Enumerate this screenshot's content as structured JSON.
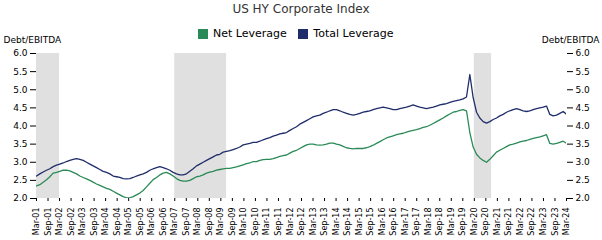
{
  "chart_data": {
    "type": "line",
    "title": "US HY Corporate Index",
    "ylabel": "Debt/EBITDA",
    "y2label": "Debt/EBITDA",
    "x": [
      0,
      1,
      2,
      3,
      4,
      5,
      6,
      7,
      8,
      9,
      10,
      11,
      12,
      13,
      14,
      15,
      16,
      17,
      18,
      19,
      20,
      21,
      22,
      23,
      24,
      25,
      26,
      27,
      28,
      29,
      30,
      31,
      32,
      33,
      34,
      35,
      36,
      37,
      38,
      39,
      40,
      41,
      42,
      43,
      44,
      45,
      46,
      47,
      48,
      49,
      50,
      51,
      52,
      53,
      54,
      55,
      56,
      57,
      58,
      59,
      60,
      61,
      62,
      63,
      64,
      65,
      66,
      67,
      68,
      69,
      70,
      71,
      72,
      73,
      74,
      75,
      76,
      77,
      78,
      79,
      80,
      81,
      82,
      83,
      84,
      85,
      86,
      87,
      88,
      89,
      90,
      91,
      92,
      93,
      94,
      95,
      96,
      97,
      98,
      99,
      100,
      101,
      102,
      103,
      104,
      105,
      106,
      107,
      108,
      109,
      110,
      111,
      112,
      113,
      114,
      115,
      116,
      117,
      118,
      119,
      120,
      121,
      122,
      123,
      124,
      125,
      126,
      127,
      128,
      129,
      130,
      131,
      132,
      133,
      134,
      135,
      136,
      137,
      138,
      139,
      140,
      141,
      142,
      143,
      144,
      145,
      146,
      147,
      148,
      149,
      150,
      151,
      152,
      153,
      154,
      155,
      156,
      157,
      158,
      159
    ],
    "series": [
      {
        "name": "Net Leverage",
        "color": "#2a8a57",
        "values": [
          2.35,
          2.38,
          2.45,
          2.52,
          2.6,
          2.7,
          2.72,
          2.75,
          2.78,
          2.78,
          2.76,
          2.72,
          2.68,
          2.62,
          2.58,
          2.54,
          2.5,
          2.45,
          2.4,
          2.36,
          2.32,
          2.28,
          2.25,
          2.2,
          2.15,
          2.1,
          2.05,
          2.02,
          2.02,
          2.05,
          2.1,
          2.15,
          2.22,
          2.32,
          2.42,
          2.52,
          2.58,
          2.65,
          2.7,
          2.72,
          2.68,
          2.62,
          2.55,
          2.5,
          2.48,
          2.48,
          2.5,
          2.55,
          2.6,
          2.62,
          2.65,
          2.7,
          2.73,
          2.75,
          2.78,
          2.8,
          2.82,
          2.83,
          2.83,
          2.85,
          2.87,
          2.9,
          2.93,
          2.96,
          2.98,
          3.02,
          3.02,
          3.05,
          3.07,
          3.08,
          3.08,
          3.1,
          3.13,
          3.16,
          3.18,
          3.2,
          3.25,
          3.3,
          3.33,
          3.38,
          3.43,
          3.48,
          3.5,
          3.5,
          3.48,
          3.47,
          3.48,
          3.5,
          3.53,
          3.53,
          3.5,
          3.48,
          3.44,
          3.4,
          3.38,
          3.37,
          3.38,
          3.38,
          3.38,
          3.4,
          3.43,
          3.47,
          3.52,
          3.57,
          3.62,
          3.67,
          3.7,
          3.73,
          3.76,
          3.78,
          3.8,
          3.83,
          3.86,
          3.88,
          3.9,
          3.93,
          3.96,
          3.98,
          4.02,
          4.07,
          4.12,
          4.17,
          4.22,
          4.28,
          4.33,
          4.38,
          4.4,
          4.43,
          4.45,
          4.42,
          3.82,
          3.42,
          3.22,
          3.12,
          3.05,
          3.0,
          3.08,
          3.18,
          3.28,
          3.33,
          3.38,
          3.43,
          3.48,
          3.5,
          3.53,
          3.56,
          3.58,
          3.6,
          3.63,
          3.66,
          3.68,
          3.7,
          3.73,
          3.76,
          3.52,
          3.5,
          3.52,
          3.55,
          3.58,
          3.52
        ]
      },
      {
        "name": "Total Leverage",
        "color": "#1f2d6b",
        "values": [
          2.62,
          2.68,
          2.73,
          2.78,
          2.82,
          2.88,
          2.92,
          2.95,
          2.98,
          3.02,
          3.05,
          3.08,
          3.1,
          3.08,
          3.05,
          3.0,
          2.95,
          2.9,
          2.85,
          2.8,
          2.75,
          2.72,
          2.68,
          2.62,
          2.6,
          2.58,
          2.55,
          2.54,
          2.55,
          2.58,
          2.62,
          2.65,
          2.68,
          2.72,
          2.78,
          2.82,
          2.85,
          2.88,
          2.85,
          2.82,
          2.78,
          2.72,
          2.68,
          2.65,
          2.65,
          2.68,
          2.75,
          2.82,
          2.9,
          2.95,
          3.0,
          3.05,
          3.1,
          3.15,
          3.2,
          3.22,
          3.28,
          3.3,
          3.32,
          3.35,
          3.38,
          3.42,
          3.48,
          3.5,
          3.52,
          3.55,
          3.55,
          3.58,
          3.62,
          3.65,
          3.68,
          3.72,
          3.75,
          3.78,
          3.8,
          3.82,
          3.88,
          3.93,
          3.98,
          4.05,
          4.1,
          4.15,
          4.2,
          4.25,
          4.28,
          4.3,
          4.35,
          4.38,
          4.42,
          4.45,
          4.45,
          4.42,
          4.38,
          4.35,
          4.32,
          4.3,
          4.32,
          4.35,
          4.38,
          4.4,
          4.42,
          4.45,
          4.48,
          4.5,
          4.52,
          4.5,
          4.48,
          4.45,
          4.45,
          4.48,
          4.5,
          4.52,
          4.55,
          4.58,
          4.55,
          4.52,
          4.5,
          4.48,
          4.5,
          4.52,
          4.55,
          4.58,
          4.6,
          4.62,
          4.65,
          4.68,
          4.7,
          4.72,
          4.75,
          4.8,
          5.42,
          4.78,
          4.38,
          4.22,
          4.12,
          4.08,
          4.12,
          4.18,
          4.22,
          4.28,
          4.32,
          4.38,
          4.42,
          4.45,
          4.48,
          4.45,
          4.42,
          4.4,
          4.42,
          4.45,
          4.48,
          4.5,
          4.52,
          4.55,
          4.32,
          4.28,
          4.3,
          4.35,
          4.4,
          4.32
        ]
      }
    ],
    "shaded": {
      "color": "#d0d0d0",
      "ranges": [
        [
          0,
          6.913043478260869
        ],
        [
          41.47826086956522,
          57.03260869565217
        ],
        [
          131.34782608695653,
          136.5326086956522
        ]
      ]
    },
    "xlim": [
      0,
      159
    ],
    "xticks": [
      {
        "value": 0,
        "label": "Mar-01"
      },
      {
        "value": 3.456521739130435,
        "label": "Sep-01"
      },
      {
        "value": 6.913043478260869,
        "label": "Mar-02"
      },
      {
        "value": 10.369565217391305,
        "label": "Sep-02"
      },
      {
        "value": 13.826086956521738,
        "label": "Mar-03"
      },
      {
        "value": 17.282608695652176,
        "label": "Sep-03"
      },
      {
        "value": 20.73913043478261,
        "label": "Mar-04"
      },
      {
        "value": 24.195652173913043,
        "label": "Sep-04"
      },
      {
        "value": 27.652173913043477,
        "label": "Mar-05"
      },
      {
        "value": 31.108695652173914,
        "label": "Sep-05"
      },
      {
        "value": 34.56521739130435,
        "label": "Mar-06"
      },
      {
        "value": 38.02173913043478,
        "label": "Sep-06"
      },
      {
        "value": 41.47826086956522,
        "label": "Mar-07"
      },
      {
        "value": 44.934782608695656,
        "label": "Sep-07"
      },
      {
        "value": 48.391304347826086,
        "label": "Mar-08"
      },
      {
        "value": 51.84782608695652,
        "label": "Sep-08"
      },
      {
        "value": 55.30434782608695,
        "label": "Mar-09"
      },
      {
        "value": 58.76086956521739,
        "label": "Sep-09"
      },
      {
        "value": 62.21739130434783,
        "label": "Mar-10"
      },
      {
        "value": 65.67391304347827,
        "label": "Sep-10"
      },
      {
        "value": 69.1304347826087,
        "label": "Mar-11"
      },
      {
        "value": 72.58695652173913,
        "label": "Sep-11"
      },
      {
        "value": 76.04347826086956,
        "label": "Mar-12"
      },
      {
        "value": 79.5,
        "label": "Sep-12"
      },
      {
        "value": 82.95652173913044,
        "label": "Mar-13"
      },
      {
        "value": 86.41304347826087,
        "label": "Sep-13"
      },
      {
        "value": 89.8695652173913,
        "label": "Mar-14"
      },
      {
        "value": 93.32608695652173,
        "label": "Sep-14"
      },
      {
        "value": 96.78260869565217,
        "label": "Mar-15"
      },
      {
        "value": 100.23913043478261,
        "label": "Sep-15"
      },
      {
        "value": 103.69565217391305,
        "label": "Mar-16"
      },
      {
        "value": 107.15217391304348,
        "label": "Sep-16"
      },
      {
        "value": 110.6086956521739,
        "label": "Mar-17"
      },
      {
        "value": 114.06521739130434,
        "label": "Sep-17"
      },
      {
        "value": 117.52173913043478,
        "label": "Mar-18"
      },
      {
        "value": 120.97826086956522,
        "label": "Sep-18"
      },
      {
        "value": 124.43478260869566,
        "label": "Mar-19"
      },
      {
        "value": 127.8913043478261,
        "label": "Sep-19"
      },
      {
        "value": 131.34782608695653,
        "label": "Mar-20"
      },
      {
        "value": 134.80434782608697,
        "label": "Sep-20"
      },
      {
        "value": 138.2608695652174,
        "label": "Mar-21"
      },
      {
        "value": 141.7173913043478,
        "label": "Sep-21"
      },
      {
        "value": 145.17391304347825,
        "label": "Mar-22"
      },
      {
        "value": 148.6304347826087,
        "label": "Sep-22"
      },
      {
        "value": 152.08695652173913,
        "label": "Mar-23"
      },
      {
        "value": 155.54347826086956,
        "label": "Sep-23"
      },
      {
        "value": 159,
        "label": "Mar-24"
      }
    ],
    "ylim": [
      2.0,
      6.0
    ],
    "yticks": [
      {
        "value": 2,
        "label": "2.0"
      },
      2.5,
      {
        "value": 3,
        "label": "3.0"
      },
      3.5,
      {
        "value": 4,
        "label": "4.0"
      },
      4.5,
      {
        "value": 5,
        "label": "5.0"
      },
      5.5,
      {
        "value": 6,
        "label": "6.0"
      }
    ],
    "y2lim": [
      2.0,
      6.0
    ],
    "y2ticks": [
      {
        "value": 2,
        "label": "2.0"
      },
      2.5,
      {
        "value": 3,
        "label": "3.0"
      },
      3.5,
      {
        "value": 4,
        "label": "4.0"
      },
      4.5,
      {
        "value": 5,
        "label": "5.0"
      },
      5.5,
      {
        "value": 6,
        "label": "6.0"
      }
    ],
    "grid": false,
    "legend": "top"
  }
}
